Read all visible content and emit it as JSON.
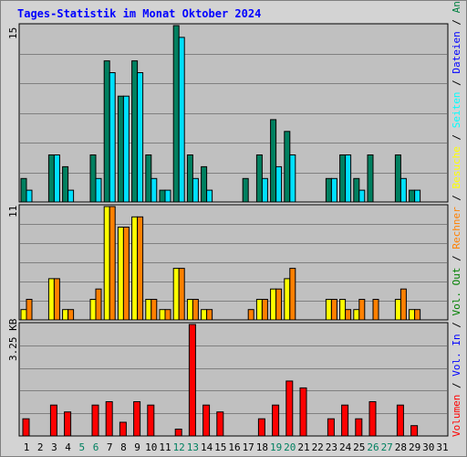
{
  "title": "Tages-Statistik im Monat Oktober 2024",
  "legend_right": [
    {
      "text": "Volumen",
      "color": "#ff0000"
    },
    {
      "text": " / ",
      "color": "#000000"
    },
    {
      "text": "Vol. In",
      "color": "#0000ff"
    },
    {
      "text": " / ",
      "color": "#000000"
    },
    {
      "text": "Vol. Out",
      "color": "#008000"
    },
    {
      "text": " / ",
      "color": "#000000"
    },
    {
      "text": "Rechner",
      "color": "#ff8000"
    },
    {
      "text": " / ",
      "color": "#000000"
    },
    {
      "text": "Besuche",
      "color": "#ffff00"
    },
    {
      "text": " / ",
      "color": "#000000"
    },
    {
      "text": "Seiten",
      "color": "#00ffff"
    },
    {
      "text": " / ",
      "color": "#000000"
    },
    {
      "text": "Dateien",
      "color": "#0000ff"
    },
    {
      "text": " / ",
      "color": "#000000"
    },
    {
      "text": "Anfragen",
      "color": "#008040"
    }
  ],
  "colors": {
    "anfragen": "#008060",
    "dateien": "#00e0ff",
    "besuche": "#ffff00",
    "rechner": "#ff8000",
    "volumen": "#ff0000",
    "plot_bg": "#c0c0c0",
    "weekend_day": "#008060",
    "gridline": "#808080"
  },
  "chart_data": [
    {
      "type": "bar",
      "panel": "hits",
      "ylabel": "15",
      "ylim": [
        0,
        15
      ],
      "categories": [
        "1",
        "2",
        "3",
        "4",
        "5",
        "6",
        "7",
        "8",
        "9",
        "10",
        "11",
        "12",
        "13",
        "14",
        "15",
        "16",
        "17",
        "18",
        "19",
        "20",
        "21",
        "22",
        "23",
        "24",
        "25",
        "26",
        "27",
        "28",
        "29",
        "30",
        "31"
      ],
      "weekend_days": [
        "5",
        "6",
        "12",
        "13",
        "19",
        "20",
        "26",
        "27"
      ],
      "series": [
        {
          "name": "Anfragen",
          "values": [
            2,
            0,
            4,
            3,
            0,
            4,
            12,
            9,
            12,
            4,
            1,
            15,
            4,
            3,
            0,
            0,
            2,
            4,
            7,
            6,
            0,
            0,
            2,
            4,
            2,
            4,
            0,
            4,
            1,
            0,
            0
          ]
        },
        {
          "name": "Dateien",
          "values": [
            1,
            0,
            4,
            1,
            0,
            2,
            11,
            9,
            11,
            2,
            1,
            14,
            2,
            1,
            0,
            0,
            0,
            2,
            3,
            4,
            0,
            0,
            2,
            4,
            1,
            0,
            0,
            2,
            1,
            0,
            0
          ]
        }
      ]
    },
    {
      "type": "bar",
      "panel": "visits",
      "ylabel": "11",
      "ylim": [
        0,
        11
      ],
      "categories": [
        "1",
        "2",
        "3",
        "4",
        "5",
        "6",
        "7",
        "8",
        "9",
        "10",
        "11",
        "12",
        "13",
        "14",
        "15",
        "16",
        "17",
        "18",
        "19",
        "20",
        "21",
        "22",
        "23",
        "24",
        "25",
        "26",
        "27",
        "28",
        "29",
        "30",
        "31"
      ],
      "series": [
        {
          "name": "Besuche",
          "values": [
            1,
            0,
            4,
            1,
            0,
            2,
            11,
            9,
            10,
            2,
            1,
            5,
            2,
            1,
            0,
            0,
            0,
            2,
            3,
            4,
            0,
            0,
            2,
            2,
            1,
            0,
            0,
            2,
            1,
            0,
            0
          ]
        },
        {
          "name": "Rechner",
          "values": [
            2,
            0,
            4,
            1,
            0,
            3,
            11,
            9,
            10,
            2,
            1,
            5,
            2,
            1,
            0,
            0,
            1,
            2,
            3,
            5,
            0,
            0,
            2,
            1,
            2,
            2,
            0,
            3,
            1,
            0,
            0
          ]
        }
      ]
    },
    {
      "type": "bar",
      "panel": "volume",
      "ylabel": "3.25 KB",
      "ylim": [
        0,
        3.25
      ],
      "categories": [
        "1",
        "2",
        "3",
        "4",
        "5",
        "6",
        "7",
        "8",
        "9",
        "10",
        "11",
        "12",
        "13",
        "14",
        "15",
        "16",
        "17",
        "18",
        "19",
        "20",
        "21",
        "22",
        "23",
        "24",
        "25",
        "26",
        "27",
        "28",
        "29",
        "30",
        "31"
      ],
      "series": [
        {
          "name": "Volumen",
          "values": [
            0.5,
            0,
            0.9,
            0.7,
            0,
            0.9,
            1.0,
            0.4,
            1.0,
            0.9,
            0,
            0.2,
            3.25,
            0.9,
            0.7,
            0,
            0,
            0.5,
            0.9,
            1.6,
            1.4,
            0,
            0.5,
            0.9,
            0.5,
            1.0,
            0,
            0.9,
            0.3,
            0,
            0
          ]
        }
      ]
    }
  ]
}
